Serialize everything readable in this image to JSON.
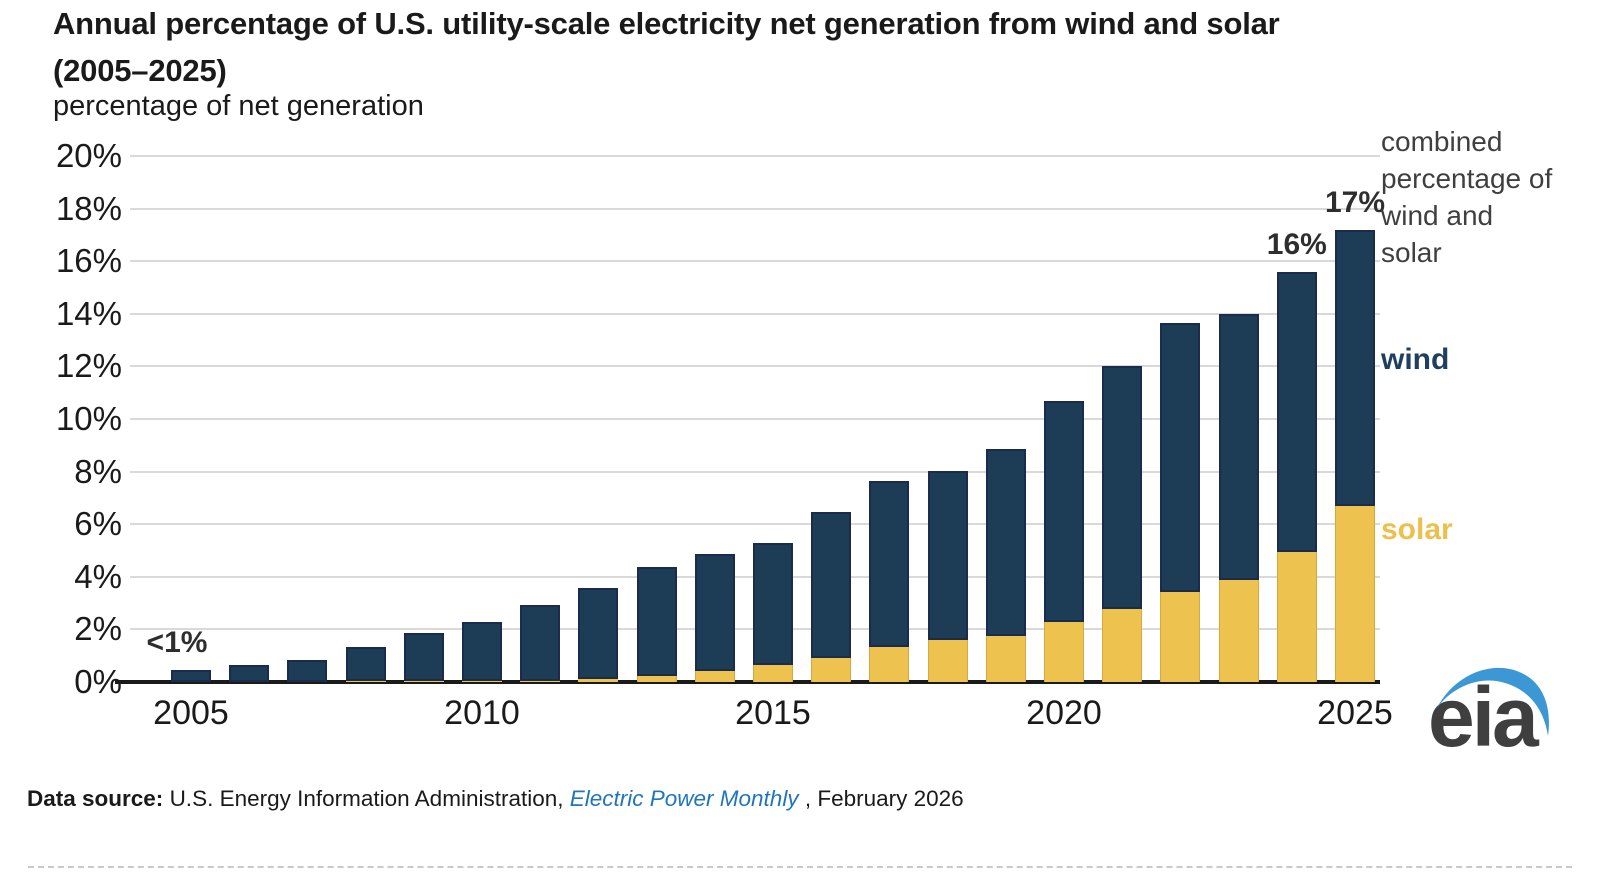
{
  "header": {
    "title_line1": "Annual percentage of U.S. utility-scale electricity net generation from wind and solar",
    "title_line2": "(2005–2025)",
    "subtitle": "percentage of net generation"
  },
  "chart_data": {
    "type": "bar",
    "stacked": true,
    "title": "Annual percentage of U.S. utility-scale electricity net generation from wind and solar (2005–2025)",
    "ylabel": "percentage of net generation",
    "categories": [
      "2005",
      "2006",
      "2007",
      "2008",
      "2009",
      "2010",
      "2011",
      "2012",
      "2013",
      "2014",
      "2015",
      "2016",
      "2017",
      "2018",
      "2019",
      "2020",
      "2021",
      "2022",
      "2023",
      "2024",
      "2025"
    ],
    "series": [
      {
        "name": "solar",
        "color": "#eec24f",
        "values": [
          0.01,
          0.01,
          0.01,
          0.02,
          0.02,
          0.03,
          0.04,
          0.11,
          0.23,
          0.43,
          0.63,
          0.9,
          1.32,
          1.6,
          1.74,
          2.28,
          2.79,
          3.41,
          3.87,
          4.96,
          6.7
        ]
      },
      {
        "name": "wind",
        "color": "#1d3c55",
        "values": [
          0.44,
          0.64,
          0.83,
          1.32,
          1.85,
          2.26,
          2.88,
          3.46,
          4.13,
          4.44,
          4.67,
          5.55,
          6.33,
          6.44,
          7.12,
          8.42,
          9.23,
          10.25,
          10.13,
          10.62,
          10.5
        ]
      }
    ],
    "ylim": [
      0,
      20
    ],
    "ytick_step": 2,
    "ytick_labels": [
      "0%",
      "2%",
      "4%",
      "6%",
      "8%",
      "10%",
      "12%",
      "14%",
      "16%",
      "18%",
      "20%"
    ],
    "xtick_labels": [
      "2005",
      "2010",
      "2015",
      "2020",
      "2025"
    ],
    "grid": true,
    "annotations": [
      {
        "category": "2005",
        "text": "<1%",
        "dx": -14
      },
      {
        "category": "2024",
        "text": "16%",
        "dx": 0
      },
      {
        "category": "2025",
        "text": "17%",
        "dx": 0
      }
    ],
    "legend": {
      "position": "right",
      "combined_label": "combined percentage of wind and solar",
      "wind_label": "wind",
      "solar_label": "solar",
      "wind_label_color": "#1e3f5f",
      "solar_label_color": "#edbf4c"
    }
  },
  "footer": {
    "source_prefix": "Data source:",
    "source_org": " U.S. Energy Information Administration, ",
    "source_publication": "Electric Power Monthly",
    "source_suffix": ", February 2026",
    "publication_color": "#2076bc"
  },
  "logo": {
    "text": "eia",
    "swoosh_color": "#3b98d5",
    "text_color": "#3f3f3f"
  }
}
